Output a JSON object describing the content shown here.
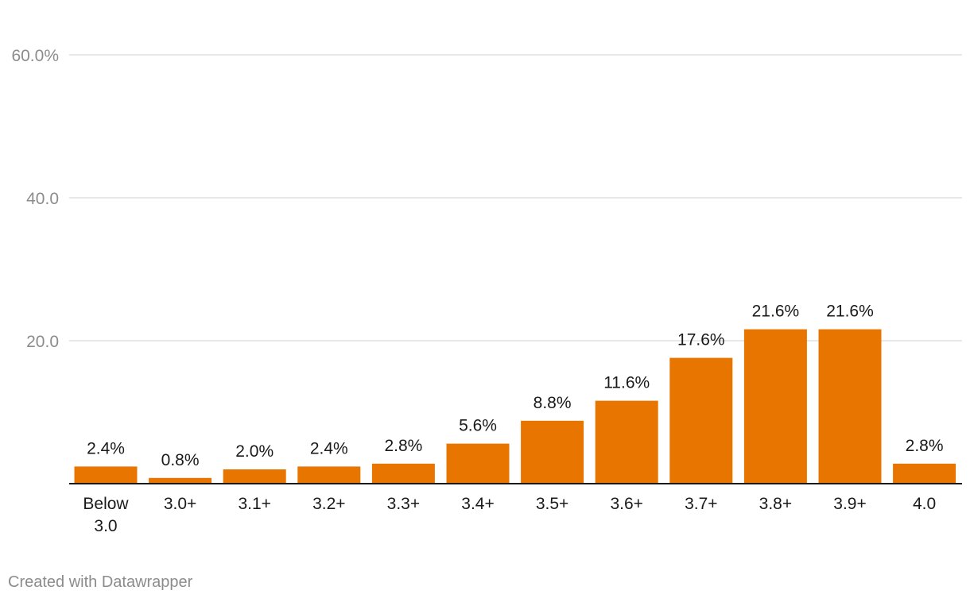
{
  "chart_data": {
    "type": "bar",
    "categories": [
      "Below 3.0",
      "3.0+",
      "3.1+",
      "3.2+",
      "3.3+",
      "3.4+",
      "3.5+",
      "3.6+",
      "3.7+",
      "3.8+",
      "3.9+",
      "4.0"
    ],
    "values": [
      2.4,
      0.8,
      2.0,
      2.4,
      2.8,
      5.6,
      8.8,
      11.6,
      17.6,
      21.6,
      21.6,
      2.8
    ],
    "value_labels": [
      "2.4%",
      "0.8%",
      "2.0%",
      "2.4%",
      "2.8%",
      "5.6%",
      "8.8%",
      "11.6%",
      "17.6%",
      "21.6%",
      "21.6%",
      "2.8%"
    ],
    "y_ticks": [
      {
        "value": 20,
        "label": "20.0"
      },
      {
        "value": 40,
        "label": "40.0"
      },
      {
        "value": 60,
        "label": "60.0%"
      }
    ],
    "ylim": [
      0,
      60
    ],
    "grid": true,
    "bar_color": "#e87500",
    "title": "",
    "xlabel": "",
    "ylabel": ""
  },
  "footer": {
    "credit": "Created with Datawrapper"
  }
}
